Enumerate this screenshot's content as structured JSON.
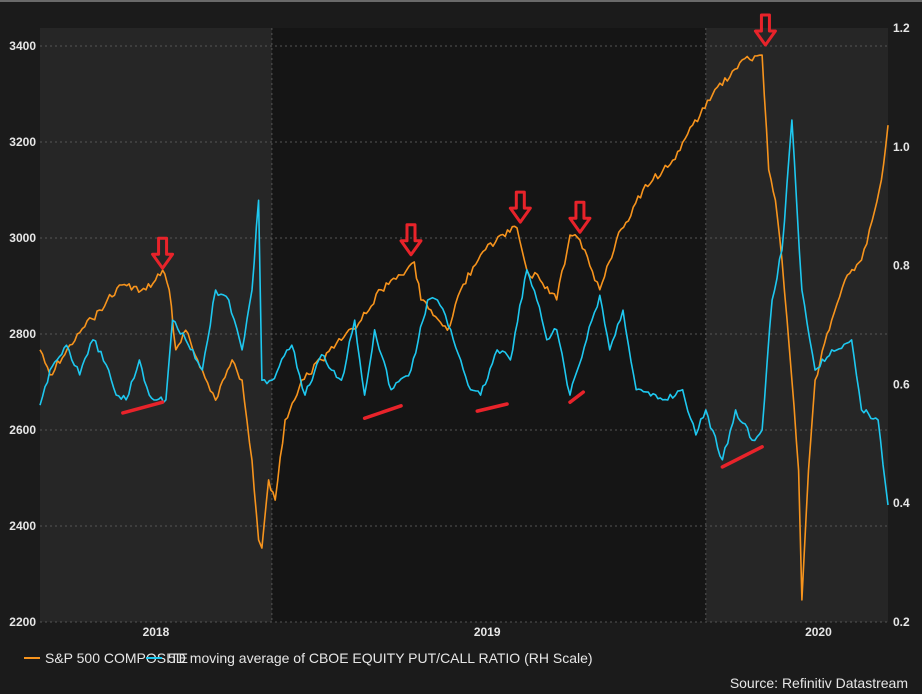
{
  "chart_data": {
    "type": "line",
    "title": "",
    "xlabel": "",
    "xlim": [
      2017.65,
      2020.21
    ],
    "x_ticks": [
      {
        "value": 2018,
        "label": "2018"
      },
      {
        "value": 2019,
        "label": "2019"
      },
      {
        "value": 2020,
        "label": "2020"
      }
    ],
    "y_left": {
      "lim": [
        2200,
        3450
      ],
      "ticks": [
        "2200",
        "2400",
        "2600",
        "2800",
        "3000",
        "3200",
        "3400"
      ]
    },
    "y_right": {
      "lim": [
        0.2,
        1.2
      ],
      "ticks": [
        "0.2",
        "0.4",
        "0.6",
        "0.8",
        "1.0",
        "1.2"
      ]
    },
    "grid": true,
    "shaded_periods": [
      [
        2017.65,
        2018.35
      ],
      [
        2019.66,
        2020.21
      ]
    ],
    "series": [
      {
        "name": "S&P 500 COMPOSITE",
        "axis": "left",
        "color": "#f7941d",
        "points": [
          [
            2017.65,
            2767
          ],
          [
            2017.68,
            2715
          ],
          [
            2017.74,
            2777
          ],
          [
            2017.83,
            2850
          ],
          [
            2017.89,
            2902
          ],
          [
            2017.97,
            2892
          ],
          [
            2018.02,
            2933
          ],
          [
            2018.04,
            2892
          ],
          [
            2018.06,
            2767
          ],
          [
            2018.09,
            2808
          ],
          [
            2018.14,
            2725
          ],
          [
            2018.18,
            2662
          ],
          [
            2018.23,
            2746
          ],
          [
            2018.26,
            2704
          ],
          [
            2018.29,
            2537
          ],
          [
            2018.31,
            2371
          ],
          [
            2018.32,
            2354
          ],
          [
            2018.34,
            2496
          ],
          [
            2018.36,
            2454
          ],
          [
            2018.39,
            2621
          ],
          [
            2018.44,
            2704
          ],
          [
            2018.5,
            2746
          ],
          [
            2018.56,
            2787
          ],
          [
            2018.62,
            2829
          ],
          [
            2018.68,
            2892
          ],
          [
            2018.74,
            2923
          ],
          [
            2018.78,
            2950
          ],
          [
            2018.8,
            2871
          ],
          [
            2018.83,
            2850
          ],
          [
            2018.88,
            2808
          ],
          [
            2018.92,
            2892
          ],
          [
            2018.98,
            2965
          ],
          [
            2019.04,
            3006
          ],
          [
            2019.09,
            3021
          ],
          [
            2019.12,
            2933
          ],
          [
            2019.16,
            2912
          ],
          [
            2019.21,
            2871
          ],
          [
            2019.25,
            3006
          ],
          [
            2019.28,
            2996
          ],
          [
            2019.34,
            2892
          ],
          [
            2019.39,
            2996
          ],
          [
            2019.47,
            3100
          ],
          [
            2019.56,
            3162
          ],
          [
            2019.62,
            3235
          ],
          [
            2019.68,
            3298
          ],
          [
            2019.77,
            3371
          ],
          [
            2019.83,
            3381
          ],
          [
            2019.85,
            3142
          ],
          [
            2019.87,
            3079
          ],
          [
            2019.89,
            2954
          ],
          [
            2019.92,
            2704
          ],
          [
            2019.94,
            2516
          ],
          [
            2019.95,
            2246
          ],
          [
            2019.97,
            2516
          ],
          [
            2019.99,
            2704
          ],
          [
            2020.04,
            2829
          ],
          [
            2020.08,
            2912
          ],
          [
            2020.13,
            2954
          ],
          [
            2020.17,
            3058
          ],
          [
            2020.19,
            3121
          ],
          [
            2020.21,
            3235
          ]
        ]
      },
      {
        "name": "5D moving average of CBOE EQUITY PUT/CALL RATIO (RH Scale)",
        "axis": "right",
        "color": "#1ec8f0",
        "points": [
          [
            2017.65,
            0.565
          ],
          [
            2017.68,
            0.624
          ],
          [
            2017.73,
            0.666
          ],
          [
            2017.77,
            0.616
          ],
          [
            2017.81,
            0.675
          ],
          [
            2017.85,
            0.633
          ],
          [
            2017.88,
            0.582
          ],
          [
            2017.91,
            0.574
          ],
          [
            2017.95,
            0.641
          ],
          [
            2017.98,
            0.582
          ],
          [
            2018.03,
            0.574
          ],
          [
            2018.05,
            0.708
          ],
          [
            2018.09,
            0.675
          ],
          [
            2018.14,
            0.624
          ],
          [
            2018.18,
            0.759
          ],
          [
            2018.22,
            0.742
          ],
          [
            2018.26,
            0.658
          ],
          [
            2018.29,
            0.759
          ],
          [
            2018.31,
            0.91
          ],
          [
            2018.32,
            0.607
          ],
          [
            2018.35,
            0.607
          ],
          [
            2018.41,
            0.666
          ],
          [
            2018.45,
            0.582
          ],
          [
            2018.5,
            0.65
          ],
          [
            2018.56,
            0.607
          ],
          [
            2018.6,
            0.708
          ],
          [
            2018.63,
            0.582
          ],
          [
            2018.66,
            0.692
          ],
          [
            2018.71,
            0.591
          ],
          [
            2018.77,
            0.624
          ],
          [
            2018.82,
            0.742
          ],
          [
            2018.85,
            0.742
          ],
          [
            2018.89,
            0.692
          ],
          [
            2018.95,
            0.591
          ],
          [
            2018.98,
            0.582
          ],
          [
            2019.03,
            0.658
          ],
          [
            2019.07,
            0.641
          ],
          [
            2019.12,
            0.793
          ],
          [
            2019.15,
            0.742
          ],
          [
            2019.18,
            0.675
          ],
          [
            2019.21,
            0.692
          ],
          [
            2019.25,
            0.582
          ],
          [
            2019.3,
            0.675
          ],
          [
            2019.34,
            0.75
          ],
          [
            2019.37,
            0.658
          ],
          [
            2019.41,
            0.725
          ],
          [
            2019.45,
            0.591
          ],
          [
            2019.53,
            0.574
          ],
          [
            2019.59,
            0.591
          ],
          [
            2019.63,
            0.515
          ],
          [
            2019.66,
            0.557
          ],
          [
            2019.71,
            0.473
          ],
          [
            2019.75,
            0.557
          ],
          [
            2019.8,
            0.506
          ],
          [
            2019.83,
            0.523
          ],
          [
            2019.86,
            0.742
          ],
          [
            2019.89,
            0.826
          ],
          [
            2019.92,
            1.045
          ],
          [
            2019.95,
            0.759
          ],
          [
            2019.99,
            0.624
          ],
          [
            2020.04,
            0.658
          ],
          [
            2020.1,
            0.675
          ],
          [
            2020.13,
            0.557
          ],
          [
            2020.18,
            0.54
          ],
          [
            2020.21,
            0.397
          ]
        ]
      }
    ],
    "annotations": {
      "arrow_color": "#e8232a",
      "down_arrows_at_sp500_peaks": [
        [
          2018.02,
          2937
        ],
        [
          2018.77,
          2965
        ],
        [
          2019.1,
          3033
        ],
        [
          2019.28,
          3012
        ],
        [
          2019.84,
          3402
        ]
      ],
      "ratio_trend_lines": [
        [
          [
            2017.9,
            0.552
          ],
          [
            2018.02,
            0.57
          ]
        ],
        [
          [
            2018.63,
            0.543
          ],
          [
            2018.74,
            0.564
          ]
        ],
        [
          [
            2018.97,
            0.555
          ],
          [
            2019.06,
            0.567
          ]
        ],
        [
          [
            2019.25,
            0.57
          ],
          [
            2019.29,
            0.587
          ]
        ],
        [
          [
            2019.71,
            0.461
          ],
          [
            2019.83,
            0.495
          ]
        ]
      ]
    },
    "legend_position": "bottom-left",
    "source": "Source: Refinitiv Datastream"
  }
}
